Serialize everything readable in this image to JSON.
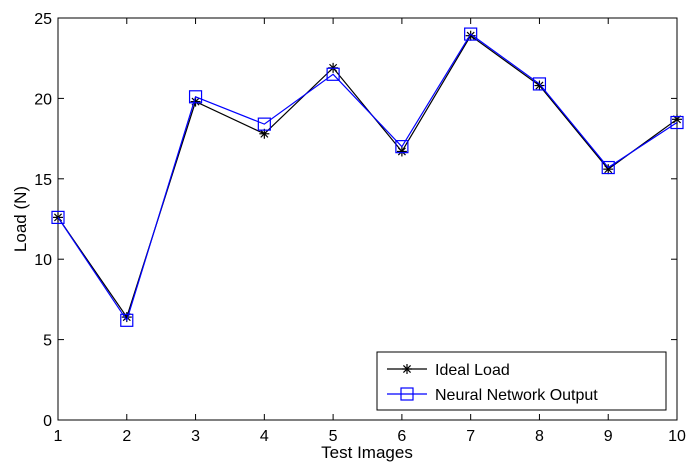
{
  "chart_data": {
    "type": "line",
    "xlabel": "Test Images",
    "ylabel": "Load (N)",
    "x": [
      1,
      2,
      3,
      4,
      5,
      6,
      7,
      8,
      9,
      10
    ],
    "xlim": [
      1,
      10
    ],
    "ylim": [
      0,
      25
    ],
    "xticks": [
      "1",
      "2",
      "3",
      "4",
      "5",
      "6",
      "7",
      "8",
      "9",
      "10"
    ],
    "yticks": [
      "0",
      "5",
      "10",
      "15",
      "20",
      "25"
    ],
    "grid": false,
    "legend_position": "bottom-right",
    "series": [
      {
        "name": "Ideal Load",
        "marker": "asterisk",
        "color": "#000000",
        "values": [
          12.6,
          6.4,
          19.8,
          17.8,
          21.9,
          16.7,
          23.9,
          20.8,
          15.6,
          18.7
        ]
      },
      {
        "name": "Neural Network Output",
        "marker": "square",
        "color": "#0000ff",
        "values": [
          12.6,
          6.2,
          20.1,
          18.4,
          21.5,
          17.0,
          24.0,
          20.9,
          15.7,
          18.5
        ]
      }
    ]
  }
}
